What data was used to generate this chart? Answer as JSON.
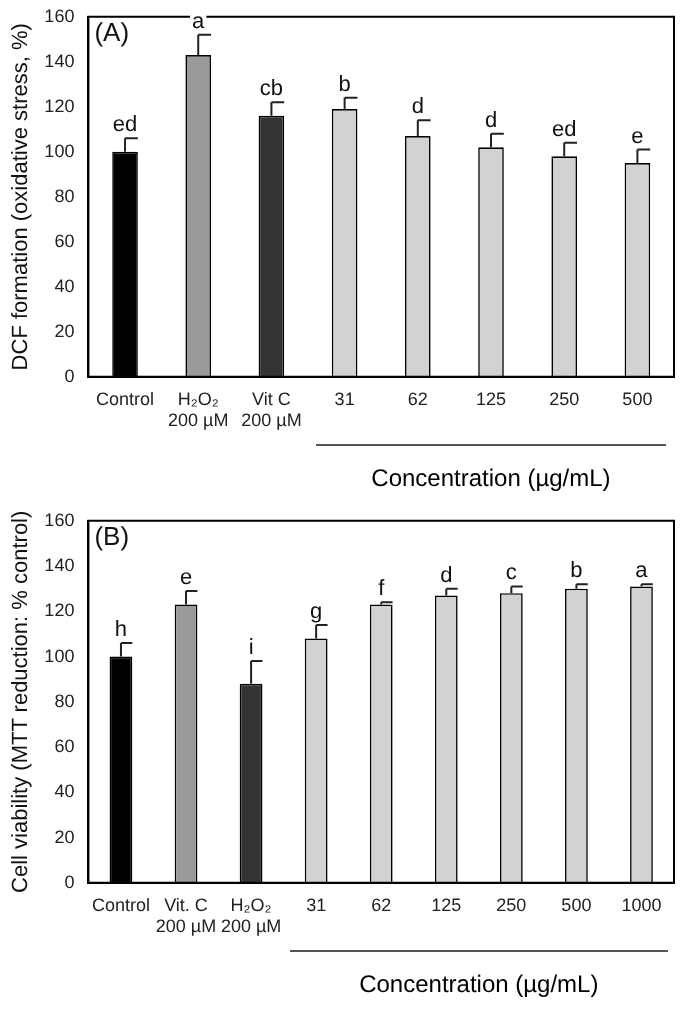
{
  "chart_data": [
    {
      "type": "bar",
      "title": "(A)",
      "ylabel": "DCF formation (oxidative stress, %)",
      "xlabel": "Concentration (µg/mL)",
      "categories": [
        "Control",
        "H₂O₂\n200 µM",
        "Vit C\n200 µM",
        "31",
        "62",
        "125",
        "250",
        "500"
      ],
      "values": [
        100,
        143,
        116,
        119,
        107,
        102,
        98,
        95
      ],
      "colors": [
        "#000000",
        "#9a9a9a",
        "#333333",
        "#d2d2d2",
        "#d2d2d2",
        "#d2d2d2",
        "#d2d2d2",
        "#d2d2d2"
      ],
      "errors": [
        [
          100,
          106
        ],
        [
          143,
          152
        ],
        [
          116,
          122
        ],
        [
          119,
          124
        ],
        [
          107,
          114
        ],
        [
          102,
          108
        ],
        [
          98,
          104
        ],
        [
          95,
          101
        ]
      ],
      "ylim": [
        0,
        160
      ],
      "yticks": [
        0,
        20,
        40,
        60,
        80,
        100,
        120,
        140,
        160
      ],
      "grid": false,
      "legend": false,
      "annotations": [
        {
          "text": "ed",
          "x": "Control",
          "y": 106
        },
        {
          "text": "a",
          "x": "H₂O₂\n200 µM",
          "y": 152
        },
        {
          "text": "cb",
          "x": "Vit C\n200 µM",
          "y": 122
        },
        {
          "text": "b",
          "x": "31",
          "y": 124
        },
        {
          "text": "d",
          "x": "62",
          "y": 114
        },
        {
          "text": "d",
          "x": "125",
          "y": 108
        },
        {
          "text": "ed",
          "x": "250",
          "y": 104
        },
        {
          "text": "e",
          "x": "500",
          "y": 101
        }
      ]
    },
    {
      "type": "bar",
      "title": "(B)",
      "ylabel": "Cell viability (MTT reduction: % control)",
      "xlabel": "Concentration (µg/mL)",
      "categories": [
        "Control",
        "Vit. C\n200 µM",
        "H₂O₂\n200 µM",
        "31",
        "62",
        "125",
        "250",
        "500",
        "1000"
      ],
      "values": [
        100,
        123,
        88,
        108,
        123,
        127,
        128,
        130,
        131
      ],
      "colors": [
        "#000000",
        "#9a9a9a",
        "#333333",
        "#d2d2d2",
        "#d2d2d2",
        "#d2d2d2",
        "#d2d2d2",
        "#d2d2d2",
        "#d2d2d2"
      ],
      "errors": [
        [
          100,
          106
        ],
        [
          123,
          129
        ],
        [
          88,
          98
        ],
        [
          108,
          114
        ],
        [
          123,
          124
        ],
        [
          127,
          130
        ],
        [
          128,
          131
        ],
        [
          130,
          132
        ],
        [
          131,
          132
        ]
      ],
      "ylim": [
        0,
        160
      ],
      "yticks": [
        0,
        20,
        40,
        60,
        80,
        100,
        120,
        140,
        160
      ],
      "grid": false,
      "legend": false,
      "annotations": [
        {
          "text": "h",
          "x": "Control",
          "y": 106
        },
        {
          "text": "e",
          "x": "Vit. C\n200 µM",
          "y": 129
        },
        {
          "text": "i",
          "x": "H₂O₂\n200 µM",
          "y": 98
        },
        {
          "text": "g",
          "x": "31",
          "y": 114
        },
        {
          "text": "f",
          "x": "62",
          "y": 124
        },
        {
          "text": "d",
          "x": "125",
          "y": 130
        },
        {
          "text": "c",
          "x": "250",
          "y": 131
        },
        {
          "text": "b",
          "x": "500",
          "y": 132
        },
        {
          "text": "a",
          "x": "1000",
          "y": 132
        }
      ]
    }
  ]
}
